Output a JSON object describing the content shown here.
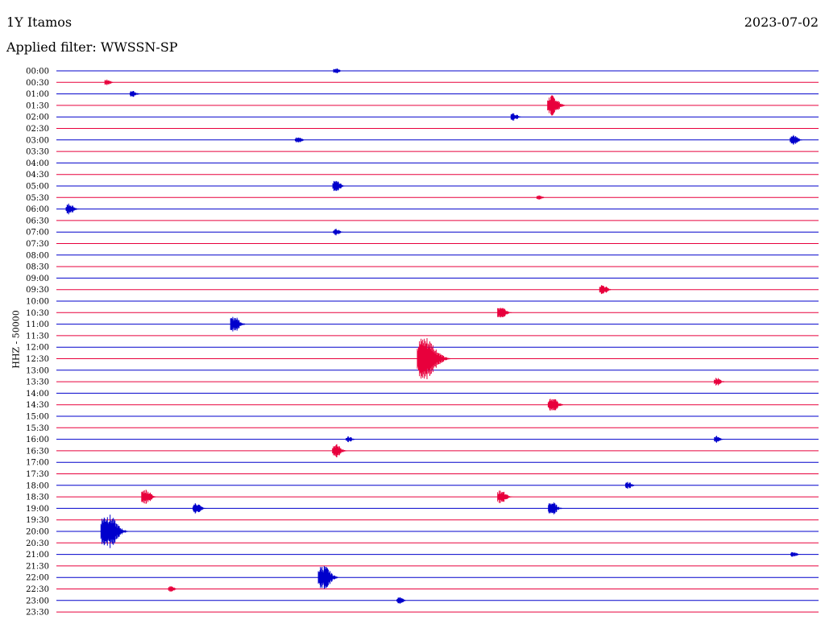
{
  "header": {
    "station": "1Y Itamos",
    "date": "2023-07-02",
    "filter_text": "Applied filter: WWSSN-SP",
    "channel_label": "HHZ - 50000"
  },
  "colors": {
    "trace_a": "#0000cc",
    "trace_b": "#e8003c"
  },
  "chart_data": {
    "type": "line",
    "title": "1Y Itamos",
    "ylabel": "HHZ - 50000",
    "row_labels": [
      "00:00",
      "00:30",
      "01:00",
      "01:30",
      "02:00",
      "02:30",
      "03:00",
      "03:30",
      "04:00",
      "04:30",
      "05:00",
      "05:30",
      "06:00",
      "06:30",
      "07:00",
      "07:30",
      "08:00",
      "08:30",
      "09:00",
      "09:30",
      "10:00",
      "10:30",
      "11:00",
      "11:30",
      "12:00",
      "12:30",
      "13:00",
      "13:30",
      "14:00",
      "14:30",
      "15:00",
      "15:30",
      "16:00",
      "16:30",
      "17:00",
      "17:30",
      "18:00",
      "18:30",
      "19:00",
      "19:30",
      "20:00",
      "20:30",
      "21:00",
      "21:30",
      "22:00",
      "22:30",
      "23:00",
      "23:30"
    ],
    "events": [
      {
        "row": "00:00",
        "minute": 11,
        "amp": 0.25
      },
      {
        "row": "00:30",
        "minute": 2,
        "amp": 0.25
      },
      {
        "row": "01:00",
        "minute": 3,
        "amp": 0.3
      },
      {
        "row": "01:30",
        "minute": 19.5,
        "amp": 0.9
      },
      {
        "row": "02:00",
        "minute": 18,
        "amp": 0.35
      },
      {
        "row": "03:00",
        "minute": 9.5,
        "amp": 0.3
      },
      {
        "row": "03:00",
        "minute": 29,
        "amp": 0.45
      },
      {
        "row": "05:00",
        "minute": 11,
        "amp": 0.5
      },
      {
        "row": "05:30",
        "minute": 19,
        "amp": 0.2
      },
      {
        "row": "06:00",
        "minute": 0.5,
        "amp": 0.5
      },
      {
        "row": "07:00",
        "minute": 11,
        "amp": 0.3
      },
      {
        "row": "09:30",
        "minute": 21.5,
        "amp": 0.45
      },
      {
        "row": "10:30",
        "minute": 17.5,
        "amp": 0.6
      },
      {
        "row": "11:00",
        "minute": 7,
        "amp": 0.7
      },
      {
        "row": "12:30",
        "minute": 14.5,
        "amp": 2.0
      },
      {
        "row": "13:30",
        "minute": 26,
        "amp": 0.35
      },
      {
        "row": "14:30",
        "minute": 19.5,
        "amp": 0.7
      },
      {
        "row": "16:00",
        "minute": 11.5,
        "amp": 0.25
      },
      {
        "row": "16:00",
        "minute": 26,
        "amp": 0.3
      },
      {
        "row": "16:30",
        "minute": 11,
        "amp": 0.6
      },
      {
        "row": "18:00",
        "minute": 22.5,
        "amp": 0.3
      },
      {
        "row": "18:30",
        "minute": 3.5,
        "amp": 0.7
      },
      {
        "row": "18:30",
        "minute": 17.5,
        "amp": 0.6
      },
      {
        "row": "19:00",
        "minute": 5.5,
        "amp": 0.5
      },
      {
        "row": "19:00",
        "minute": 19.5,
        "amp": 0.6
      },
      {
        "row": "20:00",
        "minute": 2,
        "amp": 1.6
      },
      {
        "row": "21:00",
        "minute": 29,
        "amp": 0.25
      },
      {
        "row": "22:00",
        "minute": 10.5,
        "amp": 1.1
      },
      {
        "row": "22:30",
        "minute": 4.5,
        "amp": 0.25
      },
      {
        "row": "23:00",
        "minute": 13.5,
        "amp": 0.3
      }
    ]
  }
}
